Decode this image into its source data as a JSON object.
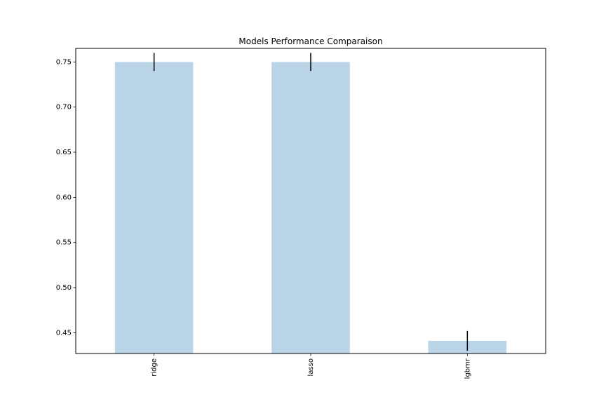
{
  "chart_data": {
    "type": "bar",
    "title": "Models Performance Comparaison",
    "categories": [
      "ridge",
      "lasso",
      "lgbmr"
    ],
    "values": [
      0.75,
      0.75,
      0.441
    ],
    "errors": [
      0.01,
      0.01,
      0.011
    ],
    "ylim": [
      0.427,
      0.765
    ],
    "yticks": [
      0.45,
      0.5,
      0.55,
      0.6,
      0.65,
      0.7,
      0.75
    ],
    "ytick_labels": [
      "0.45",
      "0.50",
      "0.55",
      "0.60",
      "0.65",
      "0.70",
      "0.75"
    ],
    "xlabel": "",
    "ylabel": "",
    "bar_color": "#bad5e8",
    "error_color": "#000000",
    "grid": false,
    "legend": "none"
  }
}
